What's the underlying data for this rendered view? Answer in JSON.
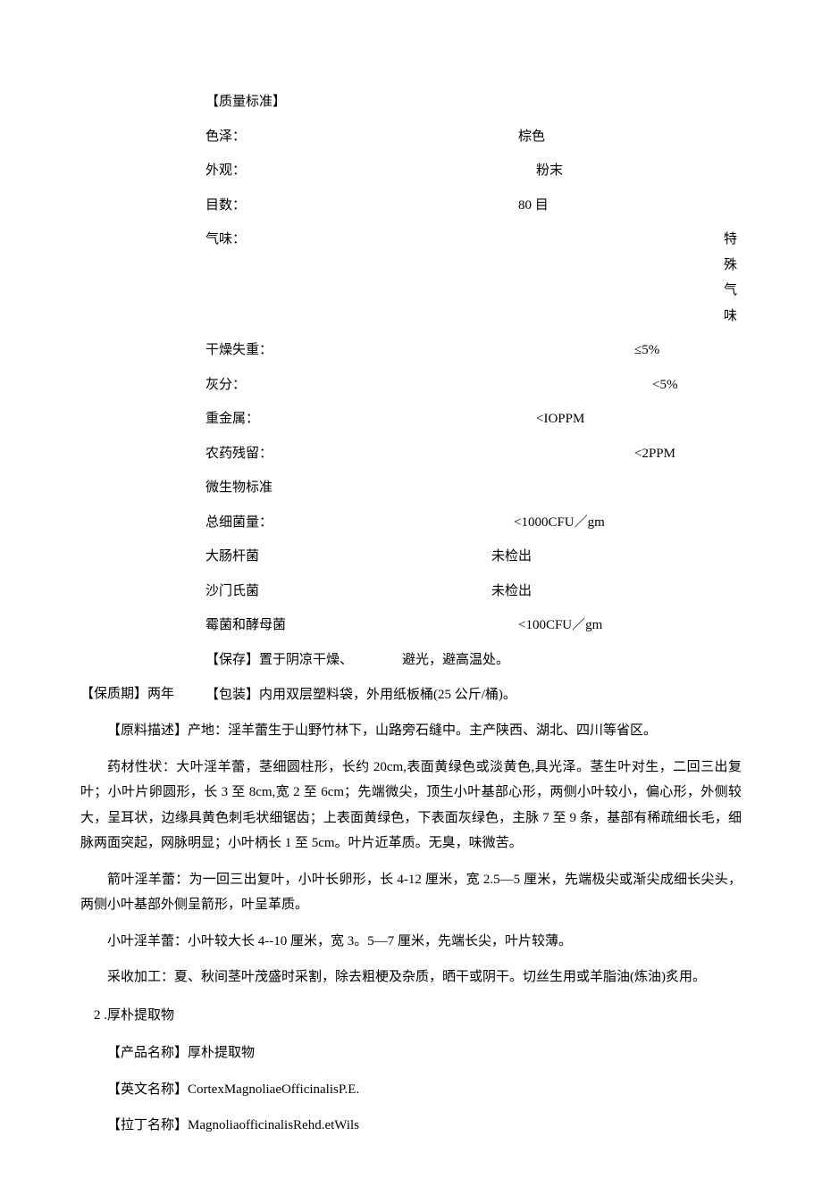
{
  "quality_standard": {
    "title": "【质量标准】",
    "rows": [
      {
        "label": "色泽：",
        "value": "棕色",
        "pad": 150
      },
      {
        "label": "外观：",
        "value": "粉末",
        "pad": 170
      },
      {
        "label": "目数：",
        "value": "80 目",
        "pad": 150
      },
      {
        "label": "气味：",
        "value": "特殊气味",
        "pad": 380
      },
      {
        "label": "干燥失重：",
        "value": "≤5%",
        "pad": 280
      },
      {
        "label": "灰分：",
        "value": "<5%",
        "pad": 300
      },
      {
        "label": "重金属：",
        "value": "<IOPPM",
        "pad": 170
      },
      {
        "label": "农药残留：",
        "value": "<2PPM",
        "pad": 280
      },
      {
        "label": "微生物标准",
        "value": "",
        "pad": 0
      },
      {
        "label": "总细菌量：",
        "value": "<1000CFU／gm",
        "pad": 145
      },
      {
        "label": "大肠杆菌",
        "value": "未检出",
        "pad": 120
      },
      {
        "label": "沙门氏菌",
        "value": "未检出",
        "pad": 120
      },
      {
        "label": "霉菌和酵母菌",
        "value": "<100CFU／gm",
        "pad": 150
      }
    ]
  },
  "storage": {
    "label": "【保存】置于阴凉干燥、",
    "value": "避光，避高温处。",
    "pad": 20
  },
  "shelf_life": "【保质期】两年",
  "packaging": "【包装】内用双层塑料袋，外用纸板桶(25 公斤/桶)。",
  "raw_material_title": "【原料描述】产地：淫羊蕾生于山野竹林下，山路旁石缝中。主产陕西、湖北、四川等省区。",
  "paragraphs": [
    "药材性状：大叶淫羊蕾，茎细圆柱形，长约 20cm,表面黄绿色或淡黄色,具光泽。茎生叶对生，二回三出复叶；小叶片卵圆形，长 3 至 8cm,宽 2 至 6cm；先端微尖，顶生小叶基部心形，两侧小叶较小，偏心形，外侧较大，呈耳状，边缘具黄色刺毛状细锯齿；上表面黄绿色，下表面灰绿色，主脉 7 至 9 条，基部有稀疏细长毛，细脉两面突起，网脉明显；小叶柄长 1 至 5cm。叶片近革质。无臭，味微苦。",
    "箭叶淫羊蕾：为一回三出复叶，小叶长卵形，长 4-12 厘米，宽 2.5—5 厘米，先端极尖或渐尖成细长尖头，两侧小叶基部外侧呈箭形，叶呈革质。",
    "小叶淫羊蕾：小叶较大长 4--10 厘米，宽 3。5—7 厘米，先端长尖，叶片较薄。",
    "采收加工：夏、秋间茎叶茂盛时采割，除去粗梗及杂质，晒干或阴干。切丝生用或羊脂油(炼油)炙用。"
  ],
  "item2": {
    "number": "2 .厚朴提取物",
    "product_name": "【产品名称】厚朴提取物",
    "english_name": "【英文名称】CortexMagnoliaeOfficinalisP.E.",
    "latin_name": "【拉丁名称】MagnoliaofficinalisRehd.etWils"
  }
}
